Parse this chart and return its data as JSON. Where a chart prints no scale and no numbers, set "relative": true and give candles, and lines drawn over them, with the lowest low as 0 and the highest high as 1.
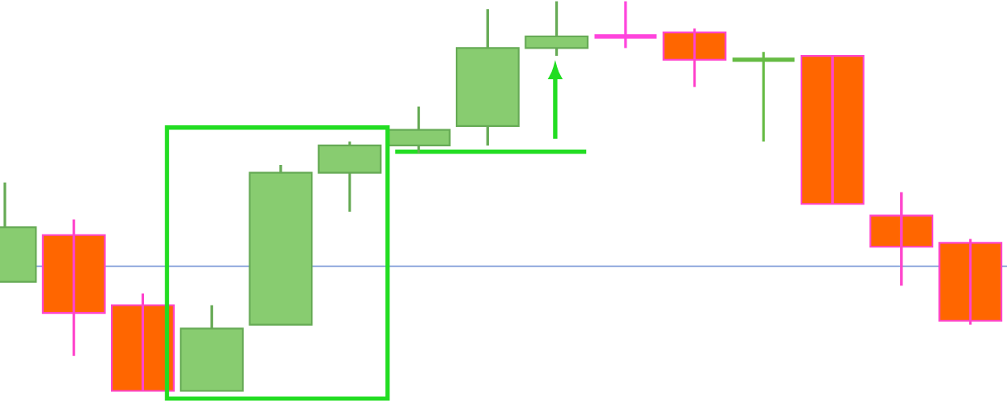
{
  "chart_data": {
    "type": "candlestick",
    "relative": true,
    "categories": [
      null,
      null,
      null,
      null,
      null,
      null,
      null,
      null,
      null,
      null,
      null,
      null,
      null,
      null,
      null
    ],
    "ohlc": [
      [
        0.28,
        0.535,
        0.28,
        0.42
      ],
      [
        0.4,
        0.44,
        0.09,
        0.2
      ],
      [
        0.22,
        0.25,
        0,
        0
      ],
      [
        0,
        0.22,
        0,
        0.16
      ],
      [
        0.17,
        0.58,
        0.17,
        0.56
      ],
      [
        0.56,
        0.64,
        0.46,
        0.63
      ],
      [
        0.63,
        0.73,
        0.61,
        0.67
      ],
      [
        0.68,
        0.98,
        0.63,
        0.88
      ],
      [
        0.88,
        1,
        0.86,
        0.91
      ],
      [
        0.91,
        1,
        0.88,
        0.91
      ],
      [
        0.92,
        0.93,
        0.78,
        0.85
      ],
      [
        0.85,
        0.87,
        0.64,
        0.85
      ],
      [
        0.86,
        0.86,
        0.48,
        0.48
      ],
      [
        0.45,
        0.51,
        0.27,
        0.37
      ],
      [
        0.38,
        0.39,
        0.17,
        0.18
      ]
    ],
    "colors": [
      "#88cc70",
      "#ff6600",
      "#ff6600",
      "#88cc70",
      "#88cc70",
      "#88cc70",
      "#88cc70",
      "#88cc70",
      "#88cc70",
      "#ff44dd",
      "#ff6600",
      "#66bb44",
      "#ff6600",
      "#ff6600",
      "#ff6600"
    ],
    "ref_lines": [
      {
        "axis": "y",
        "value": 0.32,
        "color": "#8aa4dc"
      },
      {
        "axis": "y",
        "value": 0.614,
        "color": "#22dd22"
      }
    ]
  }
}
